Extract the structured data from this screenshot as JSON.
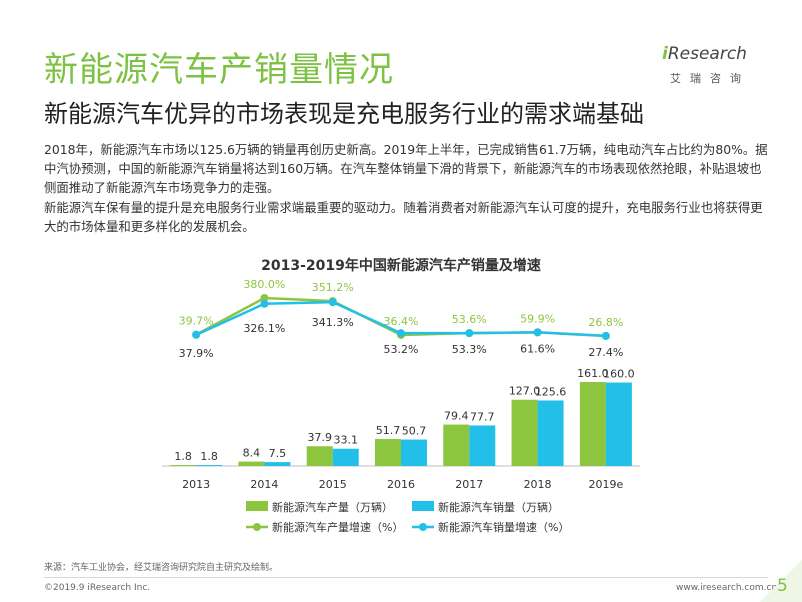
{
  "title": "新能源汽车产销量情况",
  "subtitle": "新能源汽车优异的市场表现是充电服务行业的需求端基础",
  "logo": {
    "brand_i": "i",
    "brand_rest": "Research",
    "sub": "艾瑞咨询"
  },
  "paragraphs": [
    "2018年，新能源汽车市场以125.6万辆的销量再创历史新高。2019年上半年，已完成销售61.7万辆，纯电动汽车占比约为80%。据中汽协预测，中国的新能源汽车销量将达到160万辆。在汽车整体销量下滑的背景下，新能源汽车的市场表现依然抢眼，补贴退坡也侧面推动了新能源汽车市场竞争力的走强。",
    "新能源汽车保有量的提升是充电服务行业需求端最重要的驱动力。随着消费者对新能源汽车认可度的提升，充电服务行业也将获得更大的市场体量和更多样化的发展机会。"
  ],
  "chart_data": {
    "type": "bar+line",
    "title": "2013-2019年中国新能源汽车产销量及增速",
    "categories": [
      "2013",
      "2014",
      "2015",
      "2016",
      "2017",
      "2018",
      "2019e"
    ],
    "bar_series": [
      {
        "name": "新能源汽车产量（万辆）",
        "color": "#8cc63f",
        "values": [
          1.8,
          8.4,
          37.9,
          51.7,
          79.4,
          127.0,
          161.0
        ],
        "labels": [
          "1.8",
          "8.4",
          "37.9",
          "51.7",
          "79.4",
          "127.0",
          "161.0"
        ]
      },
      {
        "name": "新能源汽车销量（万辆）",
        "color": "#22c0e8",
        "values": [
          1.8,
          7.5,
          33.1,
          50.7,
          77.7,
          125.6,
          160.0
        ],
        "labels": [
          "1.8",
          "7.5",
          "33.1",
          "50.7",
          "77.7",
          "125.6",
          "160.0"
        ]
      }
    ],
    "line_series": [
      {
        "name": "新能源汽车产量增速（%）",
        "color": "#8cc63f",
        "values": [
          39.7,
          380.0,
          351.2,
          36.4,
          53.6,
          59.9,
          26.8
        ],
        "labels": [
          "39.7%",
          "380.0%",
          "351.2%",
          "36.4%",
          "53.6%",
          "59.9%",
          "26.8%"
        ]
      },
      {
        "name": "新能源汽车销量增速（%）",
        "color": "#22c0e8",
        "values": [
          37.9,
          326.1,
          341.3,
          53.2,
          53.3,
          61.6,
          27.4
        ],
        "labels": [
          "37.9%",
          "326.1%",
          "341.3%",
          "53.2%",
          "53.3%",
          "61.6%",
          "27.4%"
        ]
      }
    ],
    "legend_position": "bottom",
    "grid": false
  },
  "source": "来源：汽车工业协会，经艾瑞咨询研究院自主研究及绘制。",
  "copyright": "©2019.9  iResearch Inc.",
  "website": "www.iresearch.com.cn",
  "page_number": "5"
}
